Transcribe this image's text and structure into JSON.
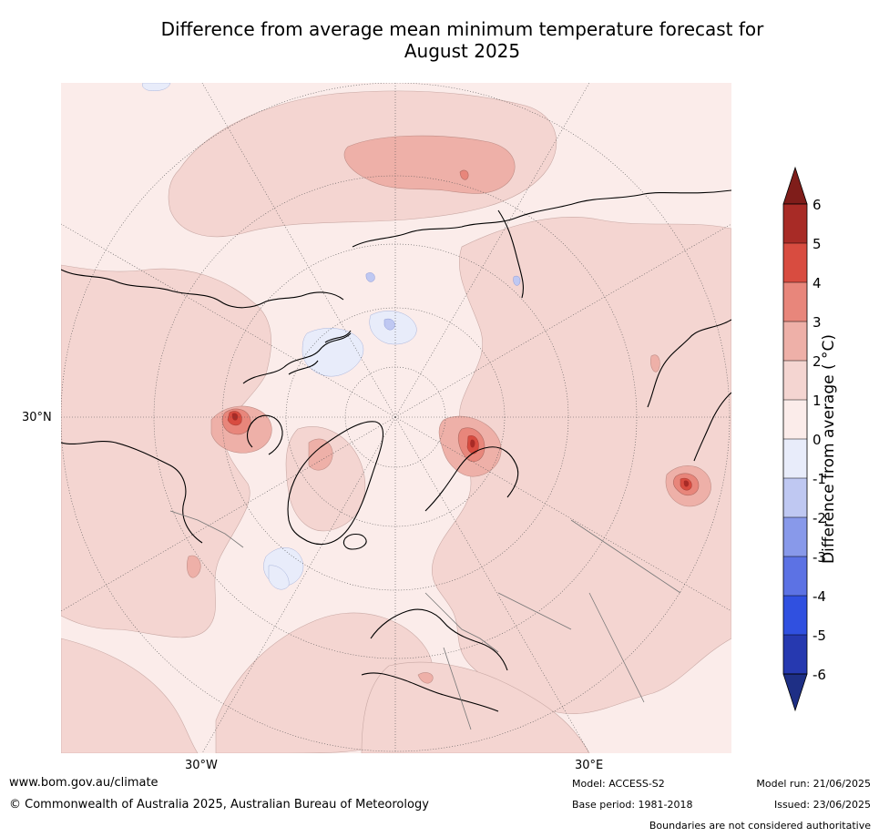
{
  "title_line1": "Difference from average mean minimum temperature forecast for",
  "title_line2": "August 2025",
  "map": {
    "projection": "north-polar-stereographic",
    "lat_label": "30°N",
    "lon_labels": [
      "30°W",
      "30°E"
    ]
  },
  "colorbar": {
    "title": "Difference from average ( °C)",
    "tick_labels": [
      "6",
      "5",
      "4",
      "3",
      "2",
      "1",
      "0",
      "-1",
      "-2",
      "-3",
      "-4",
      "-5",
      "-6"
    ],
    "bins": [
      {
        "range": "above 6",
        "color": "#7f1d1a"
      },
      {
        "range": "5 to 6",
        "color": "#a82b26"
      },
      {
        "range": "4 to 5",
        "color": "#d84c40"
      },
      {
        "range": "3 to 4",
        "color": "#e8867b"
      },
      {
        "range": "2 to 3",
        "color": "#eeb0a8"
      },
      {
        "range": "1 to 2",
        "color": "#f4d5d1"
      },
      {
        "range": "0 to 1",
        "color": "#fbecea"
      },
      {
        "range": "-1 to 0",
        "color": "#e8ecfa"
      },
      {
        "range": "-2 to -1",
        "color": "#bfc8f2"
      },
      {
        "range": "-3 to -2",
        "color": "#8899ea"
      },
      {
        "range": "-4 to -3",
        "color": "#5c72e4"
      },
      {
        "range": "-5 to -4",
        "color": "#3050e0"
      },
      {
        "range": "-6 to -5",
        "color": "#2639b0"
      },
      {
        "range": "below -6",
        "color": "#1e2f85"
      }
    ]
  },
  "footer": {
    "website": "www.bom.gov.au/climate",
    "copyright": "© Commonwealth of Australia 2025, Australian Bureau of Meteorology",
    "model": "Model: ACCESS-S2",
    "base_period": "Base period: 1981-2018",
    "model_run": "Model run: 21/06/2025",
    "issued": "Issued: 23/06/2025",
    "boundaries_note": "Boundaries are not considered authoritative"
  }
}
